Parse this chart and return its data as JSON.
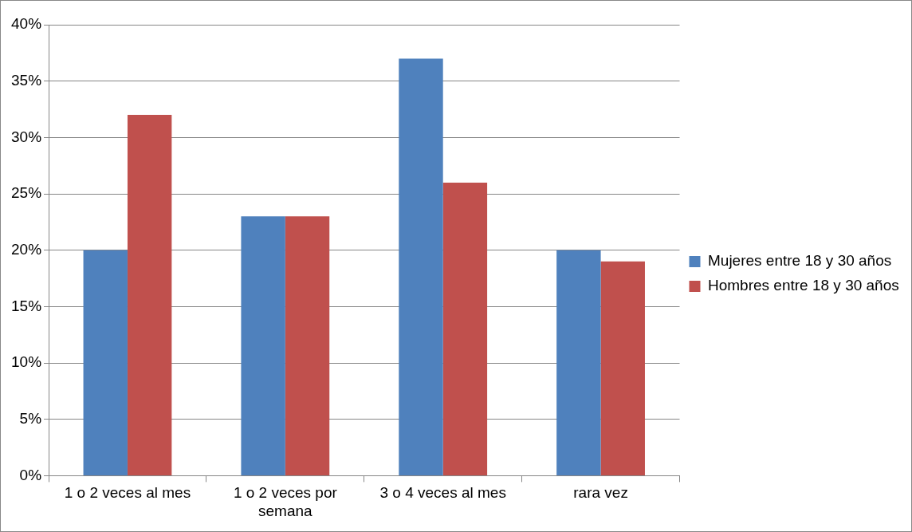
{
  "chart_data": {
    "type": "bar",
    "categories": [
      "1 o 2 veces al mes",
      "1 o 2 veces por semana",
      "3 o 4 veces al mes",
      "rara vez"
    ],
    "series": [
      {
        "name": "Mujeres entre 18 y 30 años",
        "color": "#4f81bd",
        "values": [
          20,
          23,
          37,
          20
        ]
      },
      {
        "name": "Hombres entre 18 y 30 años",
        "color": "#c0504d",
        "values": [
          32,
          23,
          26,
          19
        ]
      }
    ],
    "ylim": [
      0,
      40
    ],
    "yticks": [
      {
        "value": 0,
        "label": "0%"
      },
      {
        "value": 5,
        "label": "5%"
      },
      {
        "value": 10,
        "label": "10%"
      },
      {
        "value": 15,
        "label": "15%"
      },
      {
        "value": 20,
        "label": "20%"
      },
      {
        "value": 25,
        "label": "25%"
      },
      {
        "value": 30,
        "label": "30%"
      },
      {
        "value": 35,
        "label": "35%"
      },
      {
        "value": 40,
        "label": "40%"
      }
    ],
    "grid": "y",
    "legend": "right"
  }
}
